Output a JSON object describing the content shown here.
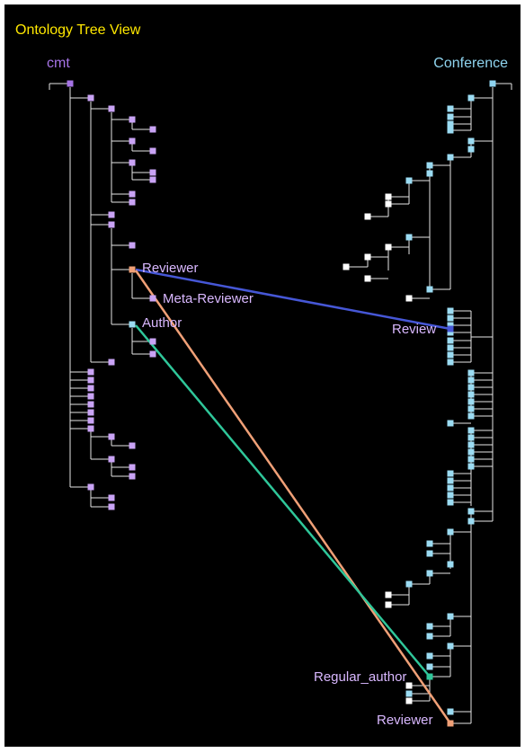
{
  "title": "Ontology Tree View",
  "colors": {
    "background": "#000000",
    "title": "#ffe800",
    "edge": "#e6e6e6",
    "left_ontology": "#a674e6",
    "left_node": "#c9a3f5",
    "right_ontology": "#8fd4ef",
    "right_node": "#9bdcf3",
    "isolated_node": "#ffffff",
    "label": "#d9b8ff",
    "match_reviewer_review": "#4657d6",
    "match_reviewer_reviewer": "#f0a077",
    "match_author_regular_author": "#2fc79a"
  },
  "left_ontology": {
    "name": "cmt"
  },
  "right_ontology": {
    "name": "Conference"
  },
  "labels": {
    "left_reviewer": "Reviewer",
    "left_meta_reviewer": "Meta-Reviewer",
    "left_author": "Author",
    "right_review": "Review",
    "right_regular_author": "Regular_author",
    "right_reviewer": "Reviewer"
  },
  "mappings": [
    {
      "source": "Reviewer",
      "target": "Review",
      "color_key": "match_reviewer_review"
    },
    {
      "source": "Reviewer",
      "target": "Reviewer",
      "color_key": "match_reviewer_reviewer"
    },
    {
      "source": "Author",
      "target": "Regular_author",
      "color_key": "match_author_regular_author"
    }
  ]
}
